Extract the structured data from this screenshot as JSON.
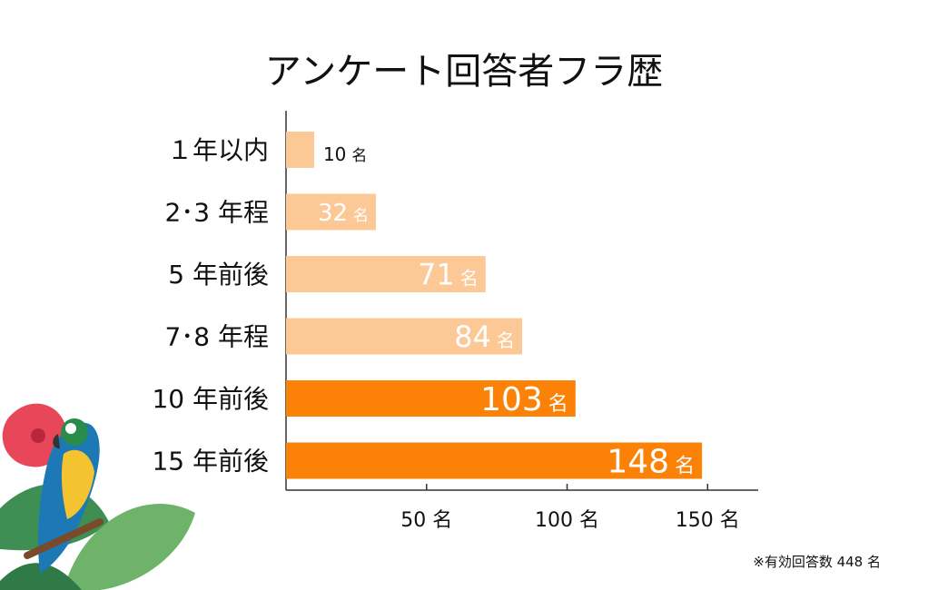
{
  "chart_data": {
    "type": "bar",
    "orientation": "horizontal",
    "title": "アンケート回答者フラ歴",
    "categories": [
      "１年以内",
      "2･3 年程",
      "5 年前後",
      "7･8 年程",
      "10 年前後",
      "15 年前後"
    ],
    "values": [
      10,
      32,
      71,
      84,
      103,
      148
    ],
    "value_unit": "名",
    "x_ticks": [
      {
        "value": 50,
        "label": "50 名"
      },
      {
        "value": 100,
        "label": "100 名"
      },
      {
        "value": 150,
        "label": "150 名"
      }
    ],
    "xlim": [
      0,
      168
    ],
    "grid": false,
    "colors": {
      "light_bar": "#fcc896",
      "dark_bar": "#fb8206",
      "axis": "#333333"
    },
    "dark_from_index": 4
  },
  "note": "※有効回答数 448 名",
  "decoration": {
    "illustration": "parrot-hibiscus-monstera-illustration"
  }
}
